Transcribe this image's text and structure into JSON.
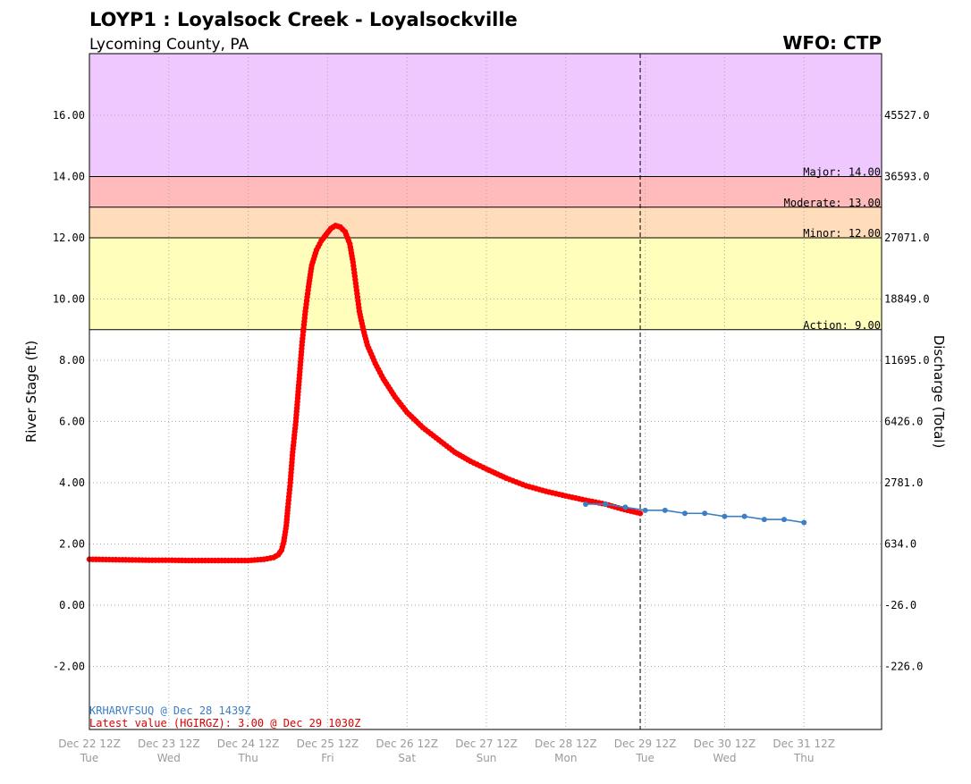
{
  "header": {
    "title": "LOYP1 : Loyalsock Creek - Loyalsockville",
    "subtitle": "Lycoming County, PA",
    "wfo": "WFO: CTP"
  },
  "chart_data": {
    "type": "line",
    "ylabel": "River Stage (ft)",
    "y2label": "Discharge (Total)",
    "ylim": [
      -4.0,
      18.0
    ],
    "xlim_days": "Dec 22 12Z to Dec 32 12Z",
    "grid": true,
    "y_ticks": [
      {
        "stage": 16.0,
        "label": "16.00",
        "flow": "45527.0"
      },
      {
        "stage": 14.0,
        "label": "14.00",
        "flow": "36593.0"
      },
      {
        "stage": 12.0,
        "label": "12.00",
        "flow": "27071.0"
      },
      {
        "stage": 10.0,
        "label": "10.00",
        "flow": "18849.0"
      },
      {
        "stage": 8.0,
        "label": "8.00",
        "flow": "11695.0"
      },
      {
        "stage": 6.0,
        "label": "6.00",
        "flow": "6426.0"
      },
      {
        "stage": 4.0,
        "label": "4.00",
        "flow": "2781.0"
      },
      {
        "stage": 2.0,
        "label": "2.00",
        "flow": "634.0"
      },
      {
        "stage": 0.0,
        "label": "0.00",
        "flow": "-26.0"
      },
      {
        "stage": -2.0,
        "label": "-2.00",
        "flow": "-226.0"
      }
    ],
    "x_ticks": [
      {
        "day": 22.5,
        "date": "Dec 22 12Z",
        "dow": "Tue"
      },
      {
        "day": 23.5,
        "date": "Dec 23 12Z",
        "dow": "Wed"
      },
      {
        "day": 24.5,
        "date": "Dec 24 12Z",
        "dow": "Thu"
      },
      {
        "day": 25.5,
        "date": "Dec 25 12Z",
        "dow": "Fri"
      },
      {
        "day": 26.5,
        "date": "Dec 26 12Z",
        "dow": "Sat"
      },
      {
        "day": 27.5,
        "date": "Dec 27 12Z",
        "dow": "Sun"
      },
      {
        "day": 28.5,
        "date": "Dec 28 12Z",
        "dow": "Mon"
      },
      {
        "day": 29.5,
        "date": "Dec 29 12Z",
        "dow": "Tue"
      },
      {
        "day": 30.5,
        "date": "Dec 30 12Z",
        "dow": "Wed"
      },
      {
        "day": 31.5,
        "date": "Dec 31 12Z",
        "dow": "Thu"
      }
    ],
    "thresholds": [
      {
        "name": "Major",
        "label": "Major: 14.00",
        "stage": 14.0,
        "color": "#ffbbbb"
      },
      {
        "name": "Moderate",
        "label": "Moderate: 13.00",
        "stage": 13.0,
        "color": "#ffddbb"
      },
      {
        "name": "Minor",
        "label": "Minor: 12.00",
        "stage": 12.0,
        "color": "#ffffbb"
      },
      {
        "name": "Action",
        "label": "Action: 9.00",
        "stage": 9.0,
        "color": "#ffffbb"
      }
    ],
    "record_band_color": "#eec8ff",
    "current_time_day": 29.4375,
    "observed": {
      "color": "#ff0000",
      "points": [
        [
          22.5,
          1.5
        ],
        [
          22.75,
          1.49
        ],
        [
          23.0,
          1.48
        ],
        [
          23.25,
          1.47
        ],
        [
          23.5,
          1.47
        ],
        [
          23.75,
          1.46
        ],
        [
          24.0,
          1.46
        ],
        [
          24.25,
          1.46
        ],
        [
          24.5,
          1.46
        ],
        [
          24.7,
          1.5
        ],
        [
          24.82,
          1.56
        ],
        [
          24.88,
          1.65
        ],
        [
          24.92,
          1.8
        ],
        [
          24.95,
          2.1
        ],
        [
          24.98,
          2.6
        ],
        [
          25.0,
          3.2
        ],
        [
          25.03,
          4.0
        ],
        [
          25.06,
          5.0
        ],
        [
          25.1,
          6.0
        ],
        [
          25.14,
          7.3
        ],
        [
          25.18,
          8.6
        ],
        [
          25.22,
          9.6
        ],
        [
          25.26,
          10.4
        ],
        [
          25.3,
          11.1
        ],
        [
          25.36,
          11.6
        ],
        [
          25.42,
          11.9
        ],
        [
          25.48,
          12.1
        ],
        [
          25.54,
          12.3
        ],
        [
          25.6,
          12.4
        ],
        [
          25.66,
          12.35
        ],
        [
          25.72,
          12.2
        ],
        [
          25.78,
          11.8
        ],
        [
          25.82,
          11.2
        ],
        [
          25.86,
          10.4
        ],
        [
          25.9,
          9.6
        ],
        [
          25.95,
          9.0
        ],
        [
          26.0,
          8.5
        ],
        [
          26.1,
          7.9
        ],
        [
          26.2,
          7.4
        ],
        [
          26.35,
          6.8
        ],
        [
          26.5,
          6.3
        ],
        [
          26.7,
          5.8
        ],
        [
          26.9,
          5.4
        ],
        [
          27.1,
          5.0
        ],
        [
          27.3,
          4.7
        ],
        [
          27.5,
          4.45
        ],
        [
          27.75,
          4.15
        ],
        [
          28.0,
          3.9
        ],
        [
          28.25,
          3.72
        ],
        [
          28.5,
          3.57
        ],
        [
          28.75,
          3.43
        ],
        [
          29.0,
          3.3
        ],
        [
          29.2,
          3.15
        ],
        [
          29.4375,
          3.0
        ]
      ]
    },
    "forecast": {
      "color": "#3b7fc4",
      "points": [
        [
          28.75,
          3.3
        ],
        [
          29.0,
          3.3
        ],
        [
          29.25,
          3.2
        ],
        [
          29.5,
          3.1
        ],
        [
          29.75,
          3.1
        ],
        [
          30.0,
          3.0
        ],
        [
          30.25,
          3.0
        ],
        [
          30.5,
          2.9
        ],
        [
          30.75,
          2.9
        ],
        [
          31.0,
          2.8
        ],
        [
          31.25,
          2.8
        ],
        [
          31.5,
          2.7
        ]
      ]
    },
    "annotations": {
      "forecast_issued": "KRHARVFSUQ @ Dec 28 1439Z",
      "latest_value": "Latest value (HGIRGZ): 3.00 @ Dec 29 1030Z"
    }
  }
}
